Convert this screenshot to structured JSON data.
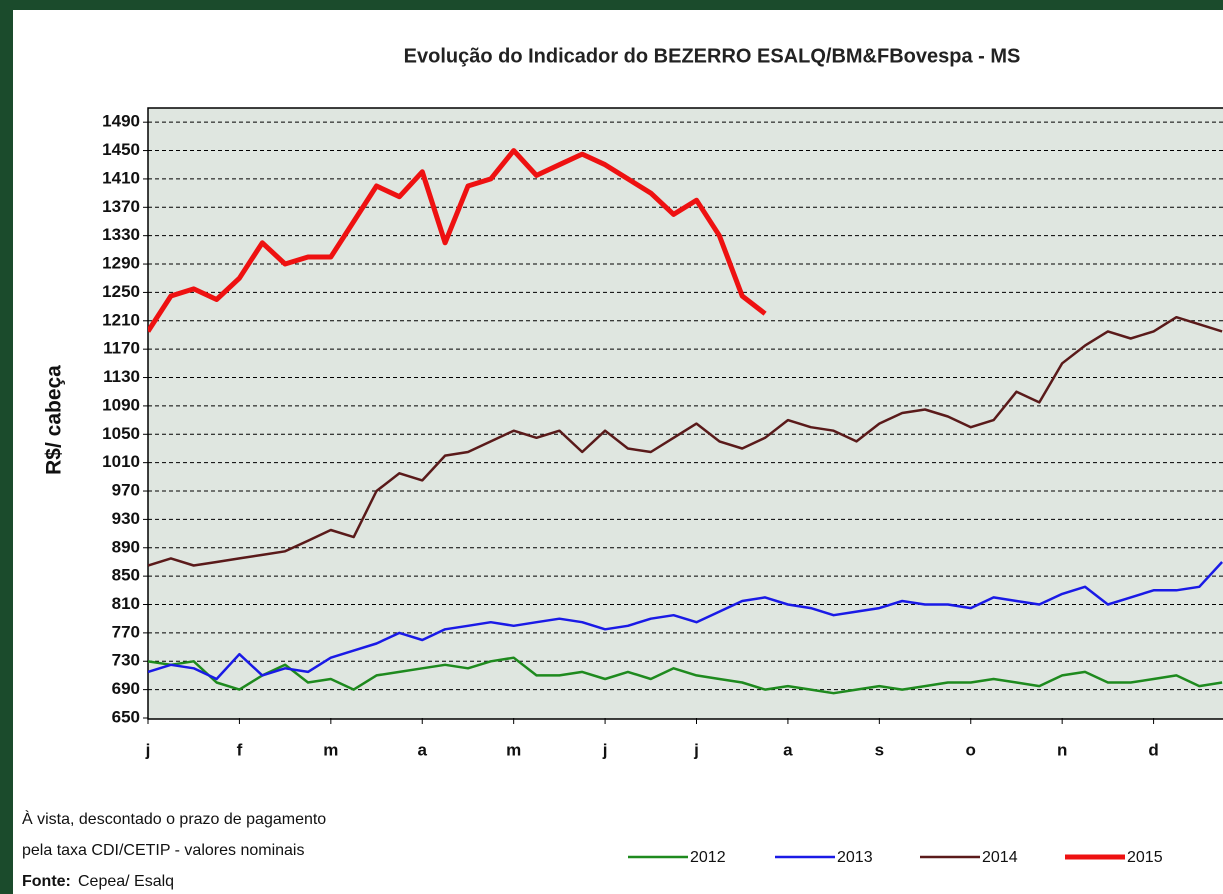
{
  "chart_data": {
    "type": "line",
    "title": "Evolução  do Indicador do BEZERRO  ESALQ/BM&FBovespa  - MS",
    "y_label": "R$/ cabeça",
    "categories": [
      "j",
      null,
      null,
      null,
      "f",
      null,
      null,
      null,
      "m",
      null,
      null,
      null,
      "a",
      null,
      null,
      null,
      "m",
      null,
      null,
      null,
      "j",
      null,
      null,
      null,
      "j",
      null,
      null,
      null,
      "a",
      null,
      null,
      null,
      "s",
      null,
      null,
      null,
      "o",
      null,
      null,
      null,
      "n",
      null,
      null,
      null,
      "d",
      null,
      null,
      null
    ],
    "series": [
      {
        "name": "2012",
        "color": "#1e8a1e",
        "width": 2.5,
        "values": [
          730,
          725,
          730,
          700,
          690,
          710,
          725,
          700,
          705,
          690,
          710,
          715,
          720,
          725,
          720,
          730,
          735,
          710,
          710,
          715,
          705,
          715,
          705,
          720,
          710,
          705,
          700,
          690,
          695,
          690,
          685,
          690,
          695,
          690,
          695,
          700,
          700,
          705,
          700,
          695,
          710,
          715,
          700,
          700,
          705,
          710,
          695,
          700
        ]
      },
      {
        "name": "2013",
        "color": "#1a1ae6",
        "width": 2.5,
        "values": [
          715,
          725,
          720,
          705,
          740,
          710,
          720,
          715,
          735,
          745,
          755,
          770,
          760,
          775,
          780,
          785,
          780,
          785,
          790,
          785,
          775,
          780,
          790,
          795,
          785,
          800,
          815,
          820,
          810,
          805,
          795,
          800,
          805,
          815,
          810,
          810,
          805,
          820,
          815,
          810,
          825,
          835,
          810,
          820,
          830,
          830,
          835,
          870
        ]
      },
      {
        "name": "2014",
        "color": "#5a1a1a",
        "width": 2.5,
        "values": [
          865,
          875,
          865,
          870,
          875,
          880,
          885,
          900,
          915,
          905,
          970,
          995,
          985,
          1020,
          1025,
          1040,
          1055,
          1045,
          1055,
          1025,
          1055,
          1030,
          1025,
          1045,
          1065,
          1040,
          1030,
          1045,
          1070,
          1060,
          1055,
          1040,
          1065,
          1080,
          1085,
          1075,
          1060,
          1070,
          1110,
          1095,
          1150,
          1175,
          1195,
          1185,
          1195,
          1215,
          1205,
          1195
        ]
      },
      {
        "name": "2015",
        "color": "#ee1111",
        "width": 5,
        "values": [
          1195,
          1245,
          1255,
          1240,
          1270,
          1320,
          1290,
          1300,
          1300,
          1350,
          1400,
          1385,
          1420,
          1320,
          1400,
          1410,
          1450,
          1415,
          1430,
          1445,
          1430,
          1410,
          1390,
          1360,
          1380,
          1330,
          1245,
          1220,
          null,
          null,
          null,
          null,
          null,
          null,
          null,
          null,
          null,
          null,
          null,
          null,
          null,
          null,
          null,
          null,
          null,
          null,
          null,
          null
        ]
      }
    ],
    "ylim": [
      650,
      1510
    ],
    "yticks": [
      650,
      690,
      730,
      770,
      810,
      850,
      890,
      930,
      970,
      1010,
      1050,
      1090,
      1130,
      1170,
      1210,
      1250,
      1290,
      1330,
      1370,
      1410,
      1450,
      1490
    ],
    "grid": true,
    "notes": [
      "À vista, descontado o prazo de pagamento",
      "pela taxa CDI/CETIP   - valores nominais"
    ],
    "source": {
      "label": "Fonte:",
      "text": "Cepea/ Esalq"
    }
  }
}
